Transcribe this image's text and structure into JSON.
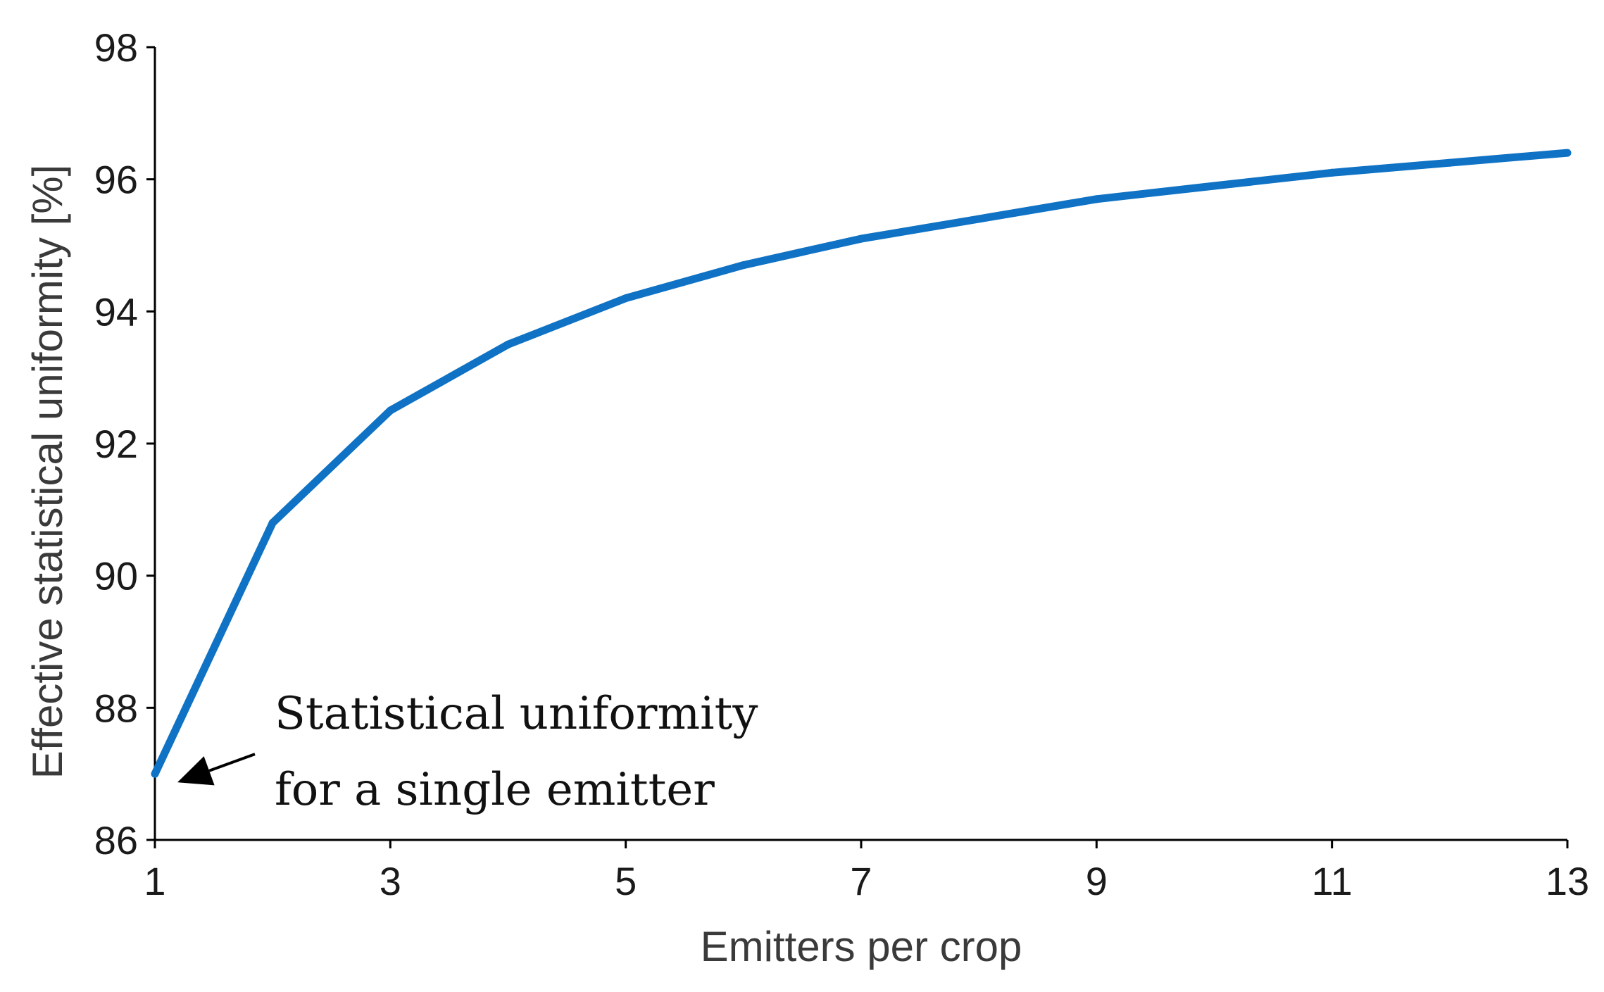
{
  "chart_data": {
    "type": "line",
    "title": "",
    "xlabel": "Emitters per crop",
    "ylabel": "Effective statistical uniformity [%]",
    "x": [
      1,
      2,
      3,
      4,
      5,
      6,
      7,
      8,
      9,
      10,
      11,
      12,
      13
    ],
    "series": [
      {
        "values": [
          87.0,
          90.8,
          92.5,
          93.5,
          94.2,
          94.7,
          95.1,
          95.4,
          95.7,
          95.9,
          96.1,
          96.25,
          96.4
        ]
      }
    ],
    "xlim": [
      1,
      13
    ],
    "ylim": [
      86,
      98
    ],
    "xticks": [
      "1",
      "3",
      "5",
      "7",
      "9",
      "11",
      "13"
    ],
    "yticks": [
      "86",
      "88",
      "90",
      "92",
      "94",
      "96",
      "98"
    ],
    "grid": false,
    "annotation": {
      "lines": [
        "Statistical uniformity",
        "for a single emitter"
      ],
      "points_to": {
        "x": 1,
        "y": 87.0
      }
    },
    "colors": {
      "series": "#0f72c4",
      "axis": "#000000"
    }
  }
}
